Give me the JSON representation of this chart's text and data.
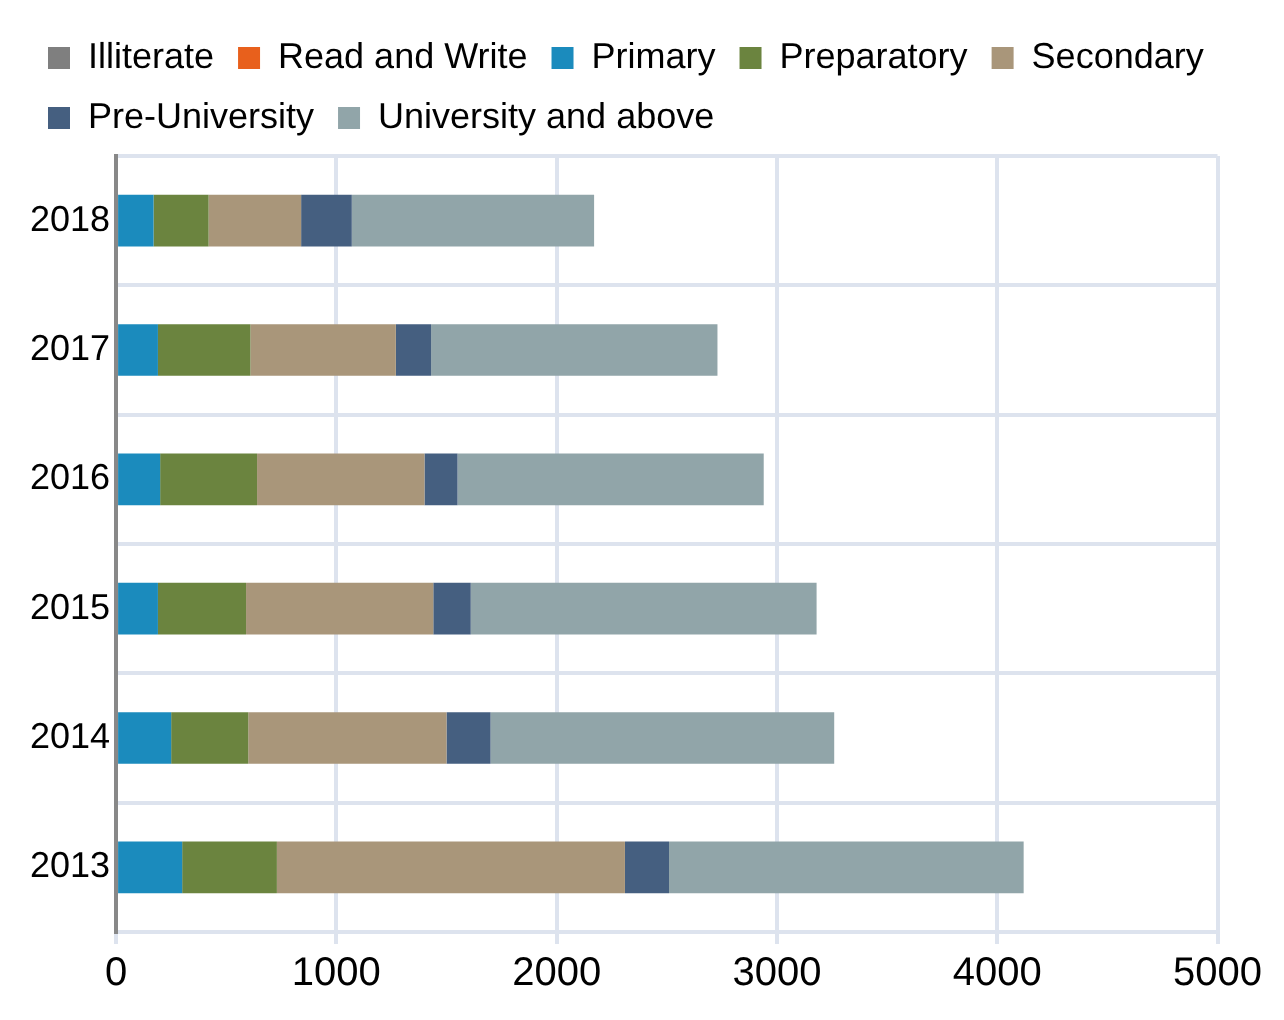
{
  "chart_data": {
    "type": "bar",
    "orientation": "horizontal",
    "stacked": true,
    "categories": [
      "2018",
      "2017",
      "2016",
      "2015",
      "2014",
      "2013"
    ],
    "series": [
      {
        "name": "Illiterate",
        "color": "#7f7f7f",
        "values": [
          0,
          0,
          0,
          0,
          0,
          0
        ]
      },
      {
        "name": "Read and Write",
        "color": "#e8601c",
        "values": [
          0,
          0,
          0,
          0,
          0,
          0
        ]
      },
      {
        "name": "Primary",
        "color": "#1b8bbd",
        "values": [
          170,
          190,
          200,
          190,
          250,
          300
        ]
      },
      {
        "name": "Preparatory",
        "color": "#6b843f",
        "values": [
          250,
          420,
          440,
          400,
          350,
          430
        ]
      },
      {
        "name": "Secondary",
        "color": "#a9967a",
        "values": [
          420,
          660,
          760,
          850,
          900,
          1580
        ]
      },
      {
        "name": "Pre-University",
        "color": "#455f80",
        "values": [
          230,
          160,
          150,
          170,
          200,
          200
        ]
      },
      {
        "name": "University and above",
        "color": "#91a5a9",
        "values": [
          1100,
          1300,
          1390,
          1570,
          1560,
          1610
        ]
      }
    ],
    "xlim": [
      0,
      5000
    ],
    "xticks": [
      0,
      1000,
      2000,
      3000,
      4000,
      5000
    ],
    "grid": true,
    "legend": "top"
  }
}
